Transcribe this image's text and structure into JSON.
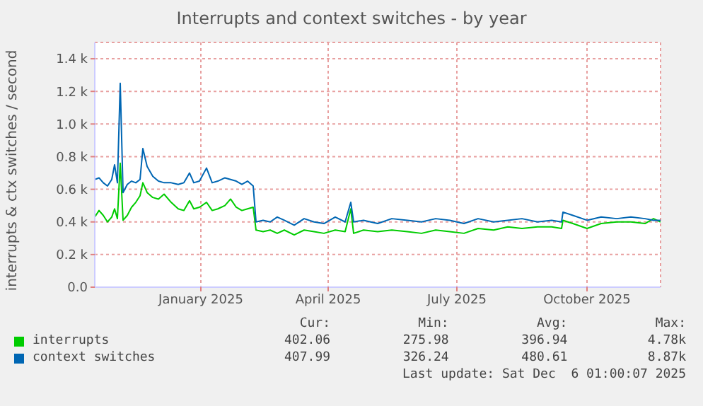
{
  "chart_data": {
    "type": "line",
    "title": "Interrupts and context switches - by year",
    "ylabel": "interrupts & ctx switches / second",
    "x": [
      "2024-11-01",
      "2024-11-04",
      "2024-11-07",
      "2024-11-10",
      "2024-11-13",
      "2024-11-15",
      "2024-11-17",
      "2024-11-19",
      "2024-11-21",
      "2024-11-24",
      "2024-11-27",
      "2024-11-30",
      "2024-12-03",
      "2024-12-05",
      "2024-12-08",
      "2024-12-12",
      "2024-12-16",
      "2024-12-20",
      "2024-12-25",
      "2024-12-30",
      "2025-01-03",
      "2025-01-07",
      "2025-01-10",
      "2025-01-14",
      "2025-01-19",
      "2025-01-23",
      "2025-01-27",
      "2025-02-01",
      "2025-02-05",
      "2025-02-09",
      "2025-02-13",
      "2025-02-17",
      "2025-02-21",
      "2025-02-23",
      "2025-02-28",
      "2025-03-05",
      "2025-03-10",
      "2025-03-15",
      "2025-03-22",
      "2025-03-29",
      "2025-04-05",
      "2025-04-12",
      "2025-04-20",
      "2025-04-27",
      "2025-05-01",
      "2025-05-03",
      "2025-05-10",
      "2025-05-20",
      "2025-05-30",
      "2025-06-10",
      "2025-06-20",
      "2025-06-30",
      "2025-07-10",
      "2025-07-20",
      "2025-07-30",
      "2025-08-10",
      "2025-08-20",
      "2025-08-30",
      "2025-09-10",
      "2025-09-20",
      "2025-09-27",
      "2025-09-28",
      "2025-10-05",
      "2025-10-15",
      "2025-10-25",
      "2025-11-05",
      "2025-11-15",
      "2025-11-25",
      "2025-12-01",
      "2025-12-06"
    ],
    "series": [
      {
        "name": "interrupts",
        "color": "#00cc00",
        "values": [
          430,
          470,
          440,
          400,
          430,
          480,
          420,
          760,
          410,
          440,
          490,
          520,
          560,
          640,
          580,
          550,
          540,
          570,
          520,
          480,
          470,
          530,
          480,
          490,
          520,
          470,
          480,
          500,
          540,
          490,
          470,
          480,
          490,
          350,
          340,
          350,
          330,
          350,
          320,
          350,
          340,
          330,
          350,
          340,
          480,
          330,
          350,
          340,
          350,
          340,
          330,
          350,
          340,
          330,
          360,
          350,
          370,
          360,
          370,
          370,
          360,
          410,
          390,
          360,
          390,
          400,
          400,
          390,
          420,
          400
        ]
      },
      {
        "name": "context switches",
        "color": "#0066b3",
        "values": [
          660,
          670,
          640,
          620,
          660,
          750,
          640,
          1250,
          580,
          630,
          650,
          640,
          660,
          850,
          740,
          680,
          650,
          640,
          640,
          630,
          640,
          700,
          640,
          650,
          730,
          640,
          650,
          670,
          660,
          650,
          630,
          650,
          620,
          400,
          410,
          400,
          430,
          410,
          380,
          420,
          400,
          390,
          430,
          400,
          520,
          400,
          410,
          390,
          420,
          410,
          400,
          420,
          410,
          390,
          420,
          400,
          410,
          420,
          400,
          410,
          400,
          460,
          440,
          410,
          430,
          420,
          430,
          420,
          410,
          410
        ]
      }
    ],
    "xlim": [
      "2024-11-01",
      "2025-12-06"
    ],
    "xticks": [
      {
        "value": "2025-01-15",
        "label": "January 2025"
      },
      {
        "value": "2025-04-15",
        "label": "April 2025"
      },
      {
        "value": "2025-07-15",
        "label": "July 2025"
      },
      {
        "value": "2025-10-15",
        "label": "October 2025"
      }
    ],
    "ylim": [
      0,
      1500
    ],
    "yticks": [
      {
        "value": 0,
        "label": "0.0"
      },
      {
        "value": 200,
        "label": "0.2 k"
      },
      {
        "value": 400,
        "label": "0.4 k"
      },
      {
        "value": 600,
        "label": "0.6 k"
      },
      {
        "value": 800,
        "label": "0.8 k"
      },
      {
        "value": 1000,
        "label": "1.0 k"
      },
      {
        "value": 1200,
        "label": "1.2 k"
      },
      {
        "value": 1400,
        "label": "1.4 k"
      }
    ],
    "grid": true,
    "legend": "bottom left",
    "marker": "none",
    "line_style": "solid",
    "annotations": [
      "Cur:",
      "Min:",
      "Avg:",
      "Max:",
      "402.06",
      "275.98",
      "396.94",
      "4.78k",
      "407.99",
      "326.24",
      "480.61",
      "8.87k",
      "Last update: Sat Dec  6 01:00:07 2025"
    ]
  }
}
